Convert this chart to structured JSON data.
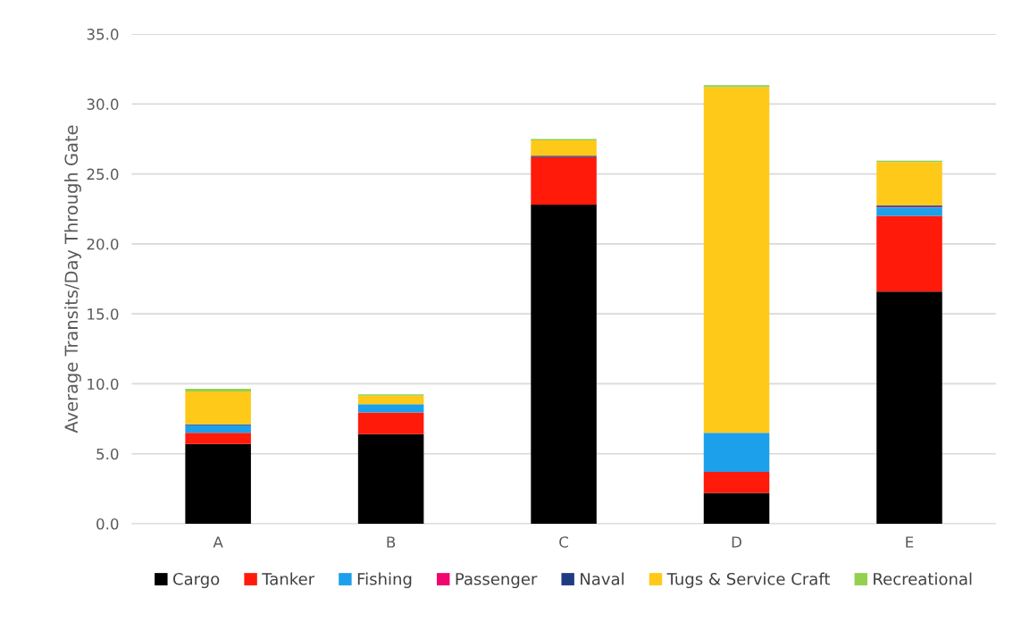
{
  "chart_data": {
    "type": "bar",
    "stacked": true,
    "ylabel": "Average Transits/Day Through Gate",
    "categories": [
      "A",
      "B",
      "C",
      "D",
      "E"
    ],
    "series": [
      {
        "name": "Cargo",
        "color": "#000000",
        "values": [
          5.7,
          6.4,
          22.8,
          2.2,
          16.6
        ]
      },
      {
        "name": "Tanker",
        "color": "#ff1a0a",
        "values": [
          0.8,
          1.55,
          3.4,
          1.5,
          5.4
        ]
      },
      {
        "name": "Fishing",
        "color": "#1ca0eb",
        "values": [
          0.55,
          0.6,
          0,
          2.8,
          0.6
        ]
      },
      {
        "name": "Passenger",
        "color": "#f0066e",
        "values": [
          0,
          0,
          0,
          0,
          0.05
        ]
      },
      {
        "name": "Naval",
        "color": "#1f3c82",
        "values": [
          0.05,
          0,
          0.1,
          0,
          0.1
        ]
      },
      {
        "name": "Tugs & Service Craft",
        "color": "#ffc91a",
        "values": [
          2.35,
          0.6,
          1.1,
          24.7,
          3.1
        ]
      },
      {
        "name": "Recreational",
        "color": "#92d050",
        "values": [
          0.2,
          0.1,
          0.1,
          0.15,
          0.1
        ]
      }
    ],
    "ylim": [
      0,
      35
    ],
    "yticks": [
      {
        "value": 0,
        "label": "0.0"
      },
      {
        "value": 5,
        "label": "5.0"
      },
      {
        "value": 10,
        "label": "10.0"
      },
      {
        "value": 15,
        "label": "15.0"
      },
      {
        "value": 20,
        "label": "20.0"
      },
      {
        "value": 25,
        "label": "25.0"
      },
      {
        "value": 30,
        "label": "30.0"
      },
      {
        "value": 35,
        "label": "35.0"
      }
    ],
    "grid": "y",
    "legend": "bottom"
  }
}
